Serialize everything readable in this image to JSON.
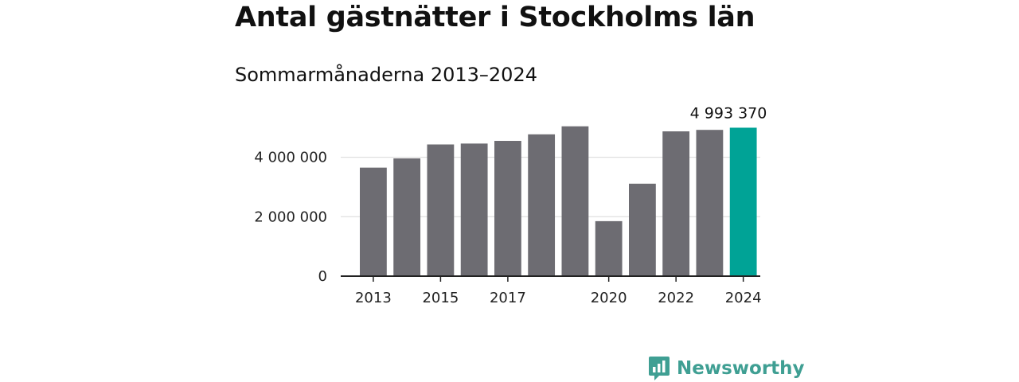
{
  "chart_data": {
    "type": "bar",
    "title": "Antal gästnätter i Stockholms län",
    "subtitle": "Sommarmånaderna 2013–2024",
    "categories": [
      "2013",
      "2014",
      "2015",
      "2016",
      "2017",
      "2018",
      "2019",
      "2020",
      "2021",
      "2022",
      "2023",
      "2024"
    ],
    "values": [
      3650000,
      3960000,
      4430000,
      4460000,
      4550000,
      4770000,
      5040000,
      1850000,
      3110000,
      4870000,
      4920000,
      4993370
    ],
    "x_tick_labels": [
      "2013",
      "",
      "2015",
      "",
      "2017",
      "",
      "",
      "2020",
      "",
      "2022",
      "",
      "2024"
    ],
    "y_ticks": [
      0,
      2000000,
      4000000
    ],
    "y_tick_labels": [
      "0",
      "2 000 000",
      "4 000 000"
    ],
    "ylim": [
      0,
      5300000
    ],
    "grid": true,
    "bar_color": "#6d6c72",
    "highlight_color": "#00a396",
    "highlight_index": 11,
    "highlight_label": "4 993 370"
  },
  "brand": {
    "name": "Newsworthy",
    "icon": "newsworthy-logo-icon",
    "color": "#3f9f93"
  }
}
